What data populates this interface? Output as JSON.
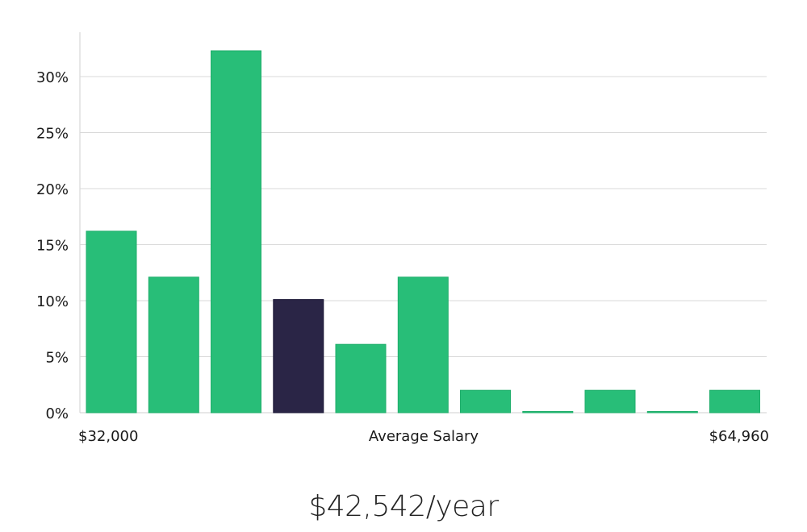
{
  "chart_data": {
    "type": "bar",
    "title": "",
    "xlabel": "Average Salary",
    "ylabel": "",
    "x_min_label": "$32,000",
    "x_max_label": "$64,960",
    "ylim": [
      0,
      34
    ],
    "yticks": [
      0,
      5,
      10,
      15,
      20,
      25,
      30
    ],
    "ytick_labels": [
      "0%",
      "5%",
      "10%",
      "15%",
      "20%",
      "25%",
      "30%"
    ],
    "grid": true,
    "values": [
      16.2,
      12.1,
      32.3,
      10.1,
      6.1,
      12.1,
      2.0,
      0,
      2.0,
      0,
      2.0
    ],
    "highlight_index": 3,
    "colors": {
      "bar": "#28be78",
      "bar_edge": "#1fae6b",
      "highlight": "#2a2546",
      "highlight_edge": "#1a1635"
    }
  },
  "summary": {
    "average_salary": "$42,542/year"
  }
}
